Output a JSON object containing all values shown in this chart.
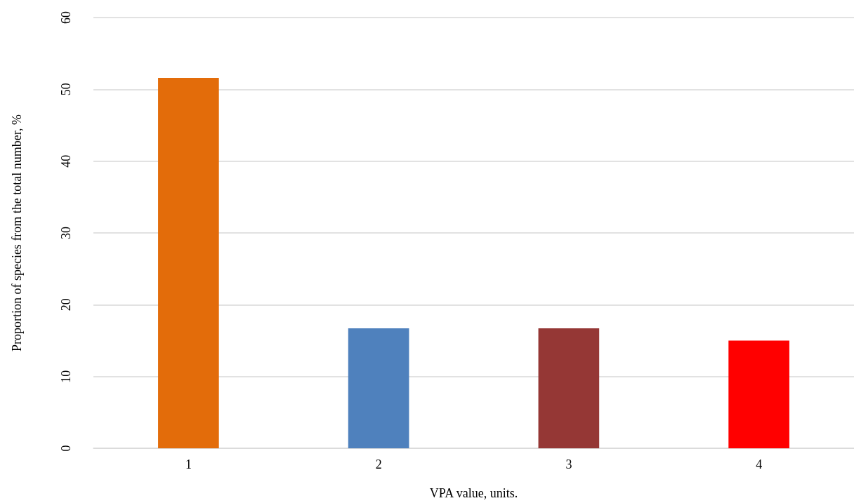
{
  "chart_data": {
    "type": "bar",
    "xlabel": "VPA value, units.",
    "ylabel": "Proportion of species from the total number, %",
    "categories": [
      "1",
      "2",
      "3",
      "4"
    ],
    "values": [
      51.6,
      16.7,
      16.7,
      15.0
    ],
    "colors": [
      "#e36c0a",
      "#4f81bd",
      "#953735",
      "#ff0000"
    ],
    "ylim": [
      0,
      60
    ],
    "yticks": [
      0,
      10,
      20,
      30,
      40,
      50,
      60
    ],
    "grid": "y"
  }
}
